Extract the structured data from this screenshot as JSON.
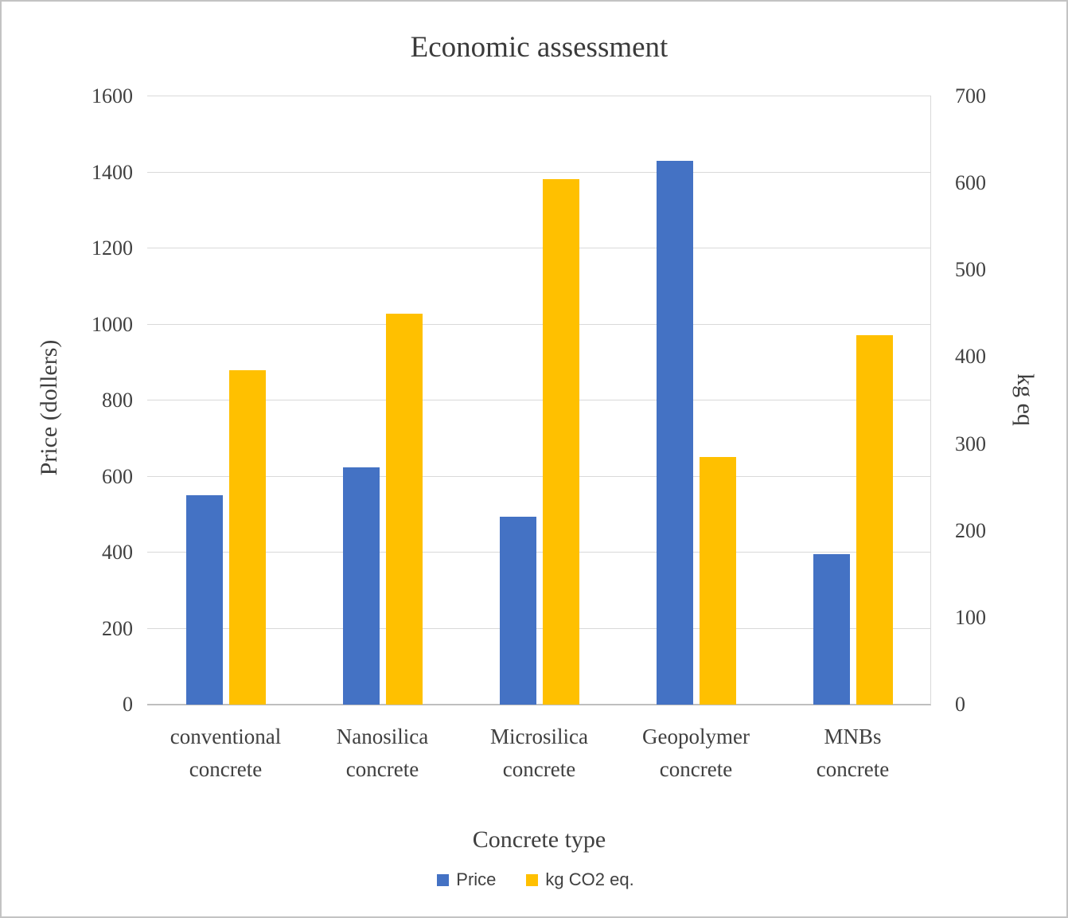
{
  "chart_data": {
    "type": "bar",
    "title": "Economic assessment",
    "xlabel": "Concrete type",
    "ylabel_left": "Price (dollers)",
    "ylabel_right": "kg eq",
    "categories": [
      "conventional\nconcrete",
      "Nanosilica\nconcrete",
      "Microsilica\nconcrete",
      "Geopolymer\nconcrete",
      "MNBs\nconcrete"
    ],
    "series": [
      {
        "name": "Price",
        "axis": "left",
        "color": "#4472C4",
        "values": [
          550,
          625,
          495,
          1430,
          395
        ]
      },
      {
        "name": "kg CO2 eq.",
        "axis": "right",
        "color": "#FFC000",
        "values": [
          385,
          450,
          605,
          285,
          425
        ]
      }
    ],
    "left_axis": {
      "min": 0,
      "max": 1600,
      "step": 200
    },
    "right_axis": {
      "min": 0,
      "max": 700,
      "step": 100
    },
    "grid": true,
    "legend_position": "bottom"
  }
}
